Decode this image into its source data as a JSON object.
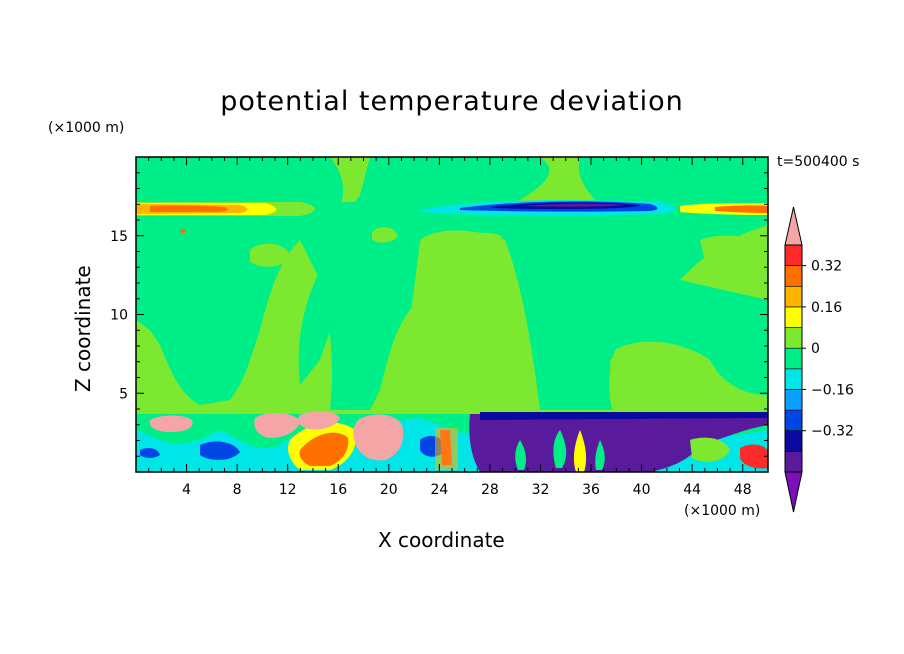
{
  "chart_data": {
    "type": "heatmap",
    "title": "potential temperature deviation",
    "xlabel": "X coordinate",
    "ylabel": "Z coordinate",
    "x_unit": "(×1000 m)",
    "z_unit": "(×1000 m)",
    "time_label": "t=500400 s",
    "xlim": [
      0,
      50
    ],
    "zlim": [
      0,
      20
    ],
    "x_ticks": [
      "4",
      "8",
      "12",
      "16",
      "20",
      "24",
      "28",
      "32",
      "36",
      "40",
      "44",
      "48"
    ],
    "z_ticks": [
      "5",
      "10",
      "15"
    ],
    "colorbar": {
      "levels": [
        -0.4,
        -0.32,
        -0.24,
        -0.16,
        -0.08,
        0,
        0.08,
        0.16,
        0.24,
        0.32,
        0.4
      ],
      "tick_labels": [
        "0.32",
        "0.16",
        "0",
        "−0.16",
        "−0.32"
      ],
      "colors": [
        "#7a10b8",
        "#5a1a9c",
        "#0a0aa0",
        "#0046e6",
        "#0aa0ff",
        "#00e6e6",
        "#00ee88",
        "#7de830",
        "#ffff00",
        "#ffb400",
        "#ff7000",
        "#ff2a2a",
        "#f4a6a6"
      ],
      "extend": "both"
    }
  }
}
